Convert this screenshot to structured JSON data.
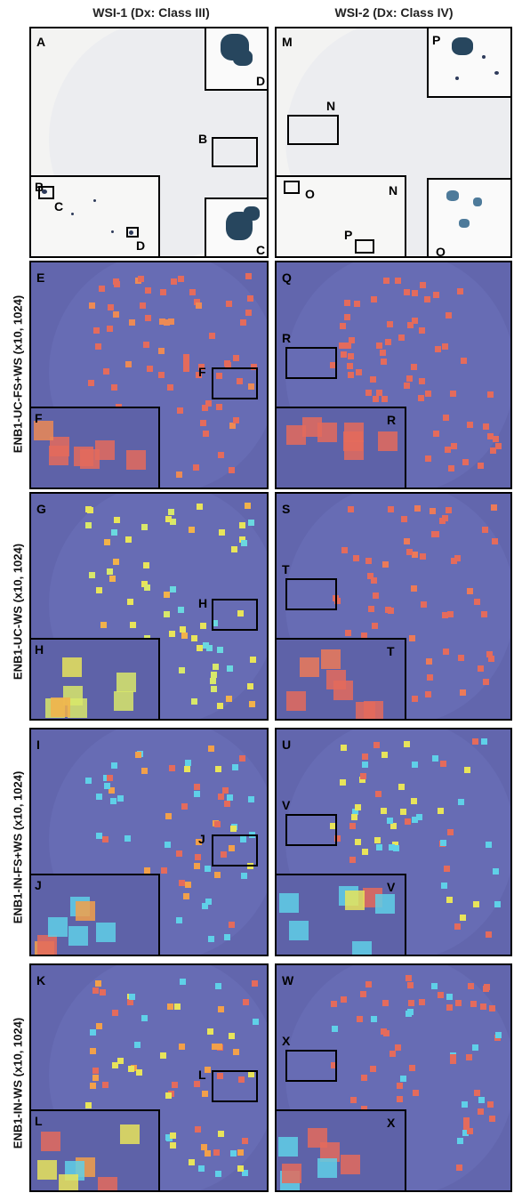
{
  "columns": [
    "WSI-1 (Dx: Class III)",
    "WSI-2 (Dx: Class IV)"
  ],
  "rows": [
    "ENB1-UC-FS+WS (x10, 1024)",
    "ENB1-UC-WS (x10, 1024)",
    "ENB1-IN-FS+WS (x10, 1024)",
    "ENB1-IN-WS (x10, 1024)"
  ],
  "panel_labels": {
    "wsi1_he": {
      "main": "A",
      "boxB": "B",
      "insetB": "B",
      "C": "C",
      "D": "D",
      "zoomD": "D",
      "zoomC": "C"
    },
    "wsi2_he": {
      "main": "M",
      "boxN": "N",
      "insetN": "N",
      "O": "O",
      "P": "P",
      "zoomP": "P",
      "zoomO": "O"
    },
    "r1": {
      "left": "E",
      "leftBox": "F",
      "leftInset": "F",
      "right": "Q",
      "rightBox": "R",
      "rightInset": "R"
    },
    "r2": {
      "left": "G",
      "leftBox": "H",
      "leftInset": "H",
      "right": "S",
      "rightBox": "T",
      "rightInset": "T"
    },
    "r3": {
      "left": "I",
      "leftBox": "J",
      "leftInset": "J",
      "right": "U",
      "rightBox": "V",
      "rightInset": "V"
    },
    "r4": {
      "left": "K",
      "leftBox": "L",
      "leftInset": "L",
      "right": "W",
      "rightBox": "X",
      "rightInset": "X"
    }
  },
  "colors": {
    "heatmap_bg": "#6266ad",
    "red": "#e86a5a",
    "orange": "#f2a04a",
    "yellow": "#e8e85a",
    "cyan": "#5fd0e8",
    "stain": "#27465e"
  }
}
